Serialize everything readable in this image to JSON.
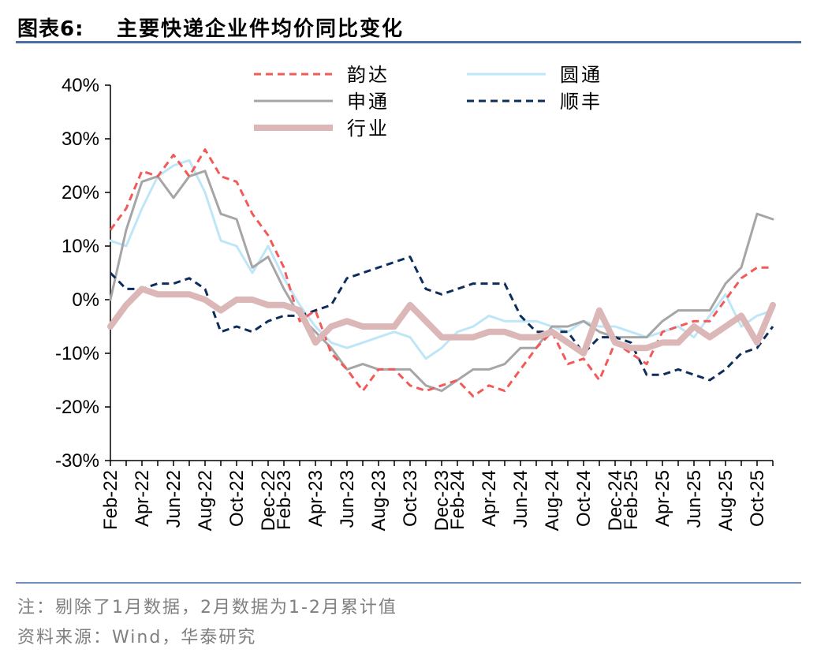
{
  "header": {
    "label": "图表6:",
    "title": "主要快递企业件均价同比变化"
  },
  "footer": {
    "note": "注：剔除了1月数据，2月数据为1-2月累计值",
    "source": "资料来源：Wind，华泰研究"
  },
  "chart_data": {
    "type": "line",
    "title": "主要快递企业件均价同比变化",
    "ylim": [
      -30,
      40
    ],
    "y_ticks": [
      40,
      30,
      20,
      10,
      0,
      -10,
      -20,
      -30
    ],
    "y_tick_labels": [
      "40%",
      "30%",
      "20%",
      "10%",
      "0%",
      "-10%",
      "-20%",
      "-30%"
    ],
    "x": [
      "Feb-22",
      "Mar-22",
      "Apr-22",
      "May-22",
      "Jun-22",
      "Jul-22",
      "Aug-22",
      "Sep-22",
      "Oct-22",
      "Nov-22",
      "Dec-22",
      "Feb-23",
      "Mar-23",
      "Apr-23",
      "May-23",
      "Jun-23",
      "Jul-23",
      "Aug-23",
      "Sep-23",
      "Oct-23",
      "Nov-23",
      "Dec-23",
      "Feb-24",
      "Mar-24",
      "Apr-24",
      "May-24",
      "Jun-24",
      "Jul-24",
      "Aug-24",
      "Sep-24",
      "Oct-24",
      "Nov-24",
      "Dec-24",
      "Feb-25",
      "Mar-25",
      "Apr-25",
      "May-25",
      "Jun-25",
      "Jul-25",
      "Aug-25",
      "Sep-25",
      "Oct-25",
      "Nov-25"
    ],
    "x_tick_labels": [
      "Feb-22",
      "Apr-22",
      "Jun-22",
      "Aug-22",
      "Oct-22",
      "Dec-22",
      "Feb-23",
      "Apr-23",
      "Jun-23",
      "Aug-23",
      "Oct-23",
      "Dec-23",
      "Feb-24",
      "Apr-24",
      "Jun-24",
      "Aug-24",
      "Oct-24",
      "Dec-24",
      "Feb-25",
      "Apr-25",
      "Jun-25",
      "Aug-25",
      "Oct-25"
    ],
    "grid": false,
    "legend_position": "top",
    "series": [
      {
        "name": "韵达",
        "color": "#f25a5a",
        "style": "dashed",
        "width": 3,
        "values": [
          13,
          17,
          24,
          23,
          27,
          23,
          28,
          23,
          22,
          16,
          12,
          6,
          -4,
          -2,
          -10,
          -13,
          -17,
          -13,
          -13,
          -16,
          -17,
          -16,
          -15,
          -18,
          -16,
          -17,
          -13,
          -9,
          -6,
          -12,
          -11,
          -15,
          -8,
          -10,
          -12,
          -6,
          -5,
          -4,
          -4,
          0,
          4,
          6,
          6
        ]
      },
      {
        "name": "圆通",
        "color": "#bfe6f7",
        "style": "solid",
        "width": 3,
        "values": [
          11,
          10,
          17,
          23,
          25,
          26,
          20,
          11,
          10,
          5,
          10,
          4,
          -1,
          -5,
          -8,
          -9,
          -8,
          -7,
          -6,
          -7,
          -11,
          -9,
          -6,
          -5,
          -3,
          -4,
          -4,
          -4,
          -5,
          -6,
          -4,
          -5,
          -5,
          -6,
          -7,
          -6,
          -5,
          -7,
          -3,
          1,
          -5,
          -3,
          -2
        ]
      },
      {
        "name": "申通",
        "color": "#a6a6a6",
        "style": "solid",
        "width": 3,
        "values": [
          0,
          13,
          22,
          23,
          19,
          23,
          24,
          16,
          15,
          6,
          8,
          2,
          -3,
          -6,
          -9,
          -13,
          -12,
          -13,
          -13,
          -13,
          -16,
          -17,
          -15,
          -13,
          -13,
          -12,
          -9,
          -9,
          -5,
          -5,
          -4,
          -6,
          -7,
          -7,
          -7,
          -4,
          -2,
          -2,
          -2,
          3,
          6,
          16,
          15
        ]
      },
      {
        "name": "顺丰",
        "color": "#0d2d5c",
        "style": "dashed",
        "width": 3,
        "values": [
          5,
          2,
          2,
          3,
          3,
          4,
          2,
          -6,
          -5,
          -6,
          -4,
          -3,
          -3,
          -2,
          -1,
          4,
          5,
          6,
          7,
          8,
          2,
          1,
          2,
          3,
          3,
          3,
          -3,
          -6,
          -6,
          -6,
          -10,
          -7,
          -7,
          -8,
          -14,
          -14,
          -13,
          -14,
          -15,
          -13,
          -10,
          -9,
          -5
        ]
      },
      {
        "name": "行业",
        "color": "#dcb7b7",
        "style": "solid",
        "width": 8,
        "values": [
          -5,
          -1,
          2,
          1,
          1,
          1,
          0,
          -2,
          0,
          0,
          -1,
          -1,
          -2,
          -8,
          -5,
          -4,
          -5,
          -5,
          -5,
          -1,
          -4,
          -7,
          -7,
          -7,
          -6,
          -6,
          -7,
          -7,
          -6,
          -8,
          -10,
          -2,
          -8,
          -9,
          -9,
          -8,
          -8,
          -5,
          -7,
          -5,
          -3,
          -8,
          -1
        ]
      }
    ]
  }
}
